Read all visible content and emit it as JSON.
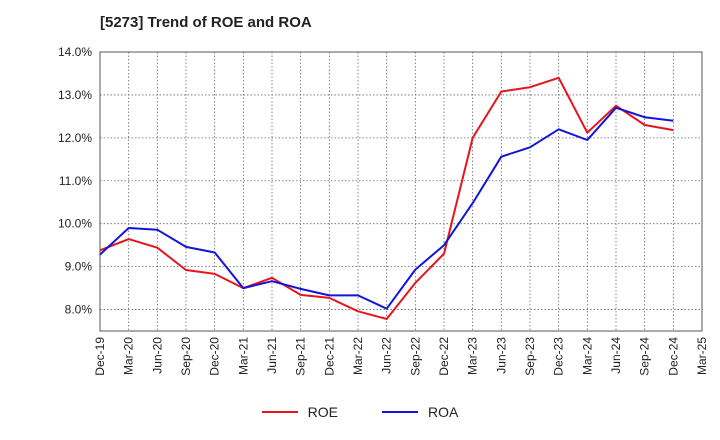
{
  "chart_data": {
    "type": "line",
    "title": "[5273]  Trend of ROE and ROA",
    "xlabel": "",
    "ylabel": "",
    "x": [
      "Dec-19",
      "Mar-20",
      "Jun-20",
      "Sep-20",
      "Dec-20",
      "Mar-21",
      "Jun-21",
      "Sep-21",
      "Dec-21",
      "Mar-22",
      "Jun-22",
      "Sep-22",
      "Dec-22",
      "Mar-23",
      "Jun-23",
      "Sep-23",
      "Dec-23",
      "Mar-24",
      "Jun-24",
      "Sep-24",
      "Dec-24",
      "Mar-25"
    ],
    "ylim": [
      7.5,
      14.0
    ],
    "y_ticks": [
      8.0,
      9.0,
      10.0,
      11.0,
      12.0,
      13.0,
      14.0
    ],
    "y_tick_labels": [
      "8.0%",
      "9.0%",
      "10.0%",
      "11.0%",
      "12.0%",
      "13.0%",
      "14.0%"
    ],
    "grid": true,
    "legend_position": "bottom",
    "series": [
      {
        "name": "ROE",
        "color": "#e8141c",
        "values": [
          9.38,
          9.64,
          9.44,
          8.92,
          8.83,
          8.5,
          8.74,
          8.34,
          8.27,
          7.96,
          7.78,
          8.62,
          9.3,
          12.0,
          13.08,
          13.18,
          13.4,
          12.12,
          12.75,
          12.3,
          12.18,
          null
        ]
      },
      {
        "name": "ROA",
        "color": "#1414d8",
        "values": [
          9.28,
          9.9,
          9.86,
          9.46,
          9.33,
          8.5,
          8.66,
          8.48,
          8.33,
          8.33,
          8.02,
          8.93,
          9.5,
          10.48,
          11.56,
          11.78,
          12.2,
          11.95,
          12.7,
          12.48,
          12.4,
          null
        ]
      }
    ]
  }
}
